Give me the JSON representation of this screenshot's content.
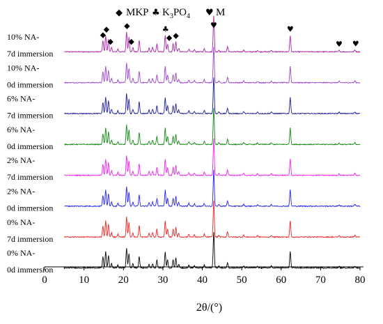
{
  "chart_data": {
    "type": "line",
    "x_range": [
      0,
      80
    ],
    "x_ticks": [
      0,
      10,
      20,
      30,
      40,
      50,
      60,
      70,
      80
    ],
    "xlabel": "2θ/(°)",
    "legend": [
      {
        "symbol": "◆",
        "symbol_name": "diamond-icon",
        "text": "MKP"
      },
      {
        "symbol": "♣",
        "symbol_name": "club-icon",
        "text": "K",
        "subscript_1": "3",
        "middle": "PO",
        "subscript_2": "4"
      },
      {
        "symbol": "♥",
        "symbol_name": "heart-icon",
        "text": "M"
      }
    ],
    "series": [
      {
        "label_line1": "10% NA-",
        "label_line2": "7d immersion",
        "color": "#aa22aa"
      },
      {
        "label_line1": "10% NA-",
        "label_line2": "0d immersion",
        "color": "#9944cc"
      },
      {
        "label_line1": "6% NA-",
        "label_line2": "7d immersion",
        "color": "#1a1a99"
      },
      {
        "label_line1": "6% NA-",
        "label_line2": "0d immersion",
        "color": "#118811"
      },
      {
        "label_line1": "2% NA-",
        "label_line2": "7d immersion",
        "color": "#ee22ee"
      },
      {
        "label_line1": "2% NA-",
        "label_line2": "0d immersion",
        "color": "#2222ee"
      },
      {
        "label_line1": "0% NA-",
        "label_line2": "7d immersion",
        "color": "#ee2222"
      },
      {
        "label_line1": "0% NA-",
        "label_line2": "0d immersion",
        "color": "#000000"
      }
    ],
    "peaks": [
      {
        "two_theta": 14.8,
        "intensity": 0.3
      },
      {
        "two_theta": 15.5,
        "intensity": 0.45
      },
      {
        "two_theta": 16.2,
        "intensity": 0.35
      },
      {
        "two_theta": 17.0,
        "intensity": 0.12
      },
      {
        "two_theta": 18.6,
        "intensity": 0.08
      },
      {
        "two_theta": 20.8,
        "intensity": 0.55
      },
      {
        "two_theta": 21.4,
        "intensity": 0.4
      },
      {
        "two_theta": 22.4,
        "intensity": 0.12
      },
      {
        "two_theta": 24.0,
        "intensity": 0.32
      },
      {
        "two_theta": 26.5,
        "intensity": 0.1
      },
      {
        "two_theta": 27.4,
        "intensity": 0.12
      },
      {
        "two_theta": 28.5,
        "intensity": 0.22
      },
      {
        "two_theta": 30.6,
        "intensity": 0.45
      },
      {
        "two_theta": 31.2,
        "intensity": 0.22
      },
      {
        "two_theta": 32.6,
        "intensity": 0.22
      },
      {
        "two_theta": 33.3,
        "intensity": 0.28
      },
      {
        "two_theta": 34.0,
        "intensity": 0.1
      },
      {
        "two_theta": 36.6,
        "intensity": 0.08
      },
      {
        "two_theta": 38.0,
        "intensity": 0.06
      },
      {
        "two_theta": 40.5,
        "intensity": 0.08
      },
      {
        "two_theta": 42.9,
        "intensity": 1.0
      },
      {
        "two_theta": 44.2,
        "intensity": 0.05
      },
      {
        "two_theta": 46.4,
        "intensity": 0.15
      },
      {
        "two_theta": 50.5,
        "intensity": 0.05
      },
      {
        "two_theta": 54.0,
        "intensity": 0.04
      },
      {
        "two_theta": 57.5,
        "intensity": 0.05
      },
      {
        "two_theta": 62.3,
        "intensity": 0.45
      },
      {
        "two_theta": 74.7,
        "intensity": 0.04
      },
      {
        "two_theta": 78.7,
        "intensity": 0.05
      }
    ],
    "markers": [
      {
        "symbol": "◆",
        "name": "mkp-marker",
        "two_theta": 14.8
      },
      {
        "symbol": "◆",
        "name": "mkp-marker",
        "two_theta": 15.7
      },
      {
        "symbol": "◆",
        "name": "mkp-marker",
        "two_theta": 16.7
      },
      {
        "symbol": "◆",
        "name": "mkp-marker",
        "two_theta": 20.9
      },
      {
        "symbol": "◆",
        "name": "mkp-marker",
        "two_theta": 22.0
      },
      {
        "symbol": "♣",
        "name": "k3po4-marker",
        "two_theta": 30.7
      },
      {
        "symbol": "◆",
        "name": "mkp-marker",
        "two_theta": 31.6
      },
      {
        "symbol": "◆",
        "name": "mkp-marker",
        "two_theta": 33.3
      },
      {
        "symbol": "♥",
        "name": "m-marker",
        "two_theta": 42.9
      },
      {
        "symbol": "♥",
        "name": "m-marker",
        "two_theta": 62.3
      },
      {
        "symbol": "♥",
        "name": "m-marker",
        "two_theta": 74.7
      },
      {
        "symbol": "♥",
        "name": "m-marker",
        "two_theta": 78.9
      }
    ]
  }
}
